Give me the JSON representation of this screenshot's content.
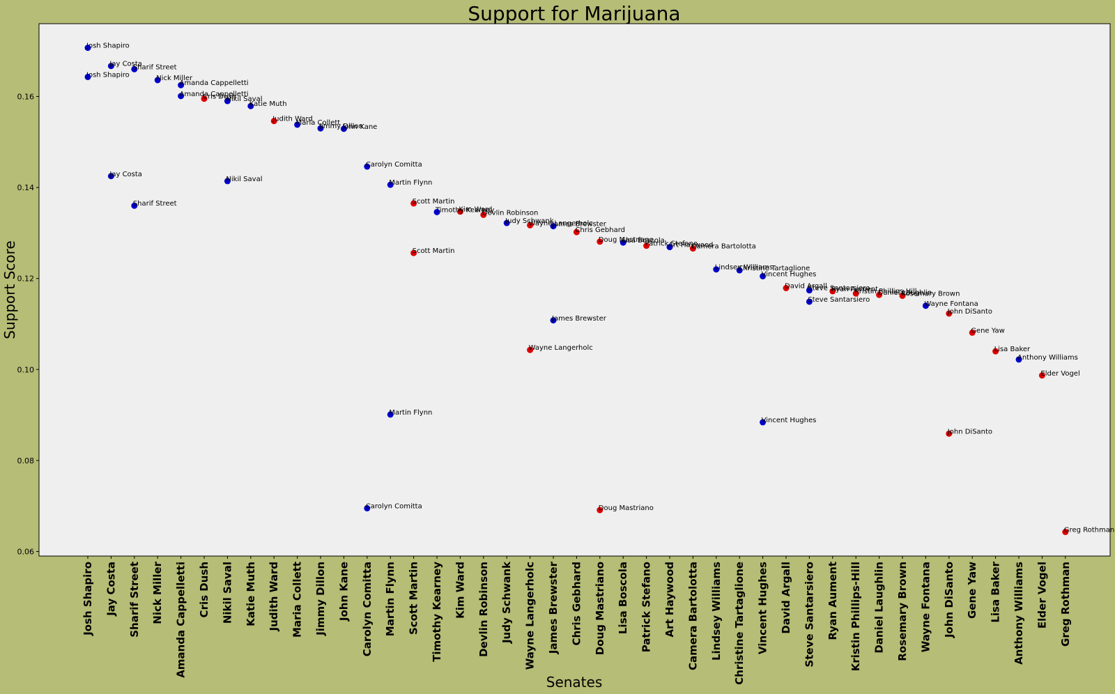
{
  "chart_data": {
    "type": "scatter",
    "title": "Support for Marijuana",
    "xlabel": "Senates",
    "ylabel": "Support Score",
    "ylim": [
      0.059,
      0.176
    ],
    "yticks": [
      0.06,
      0.08,
      0.1,
      0.12,
      0.14,
      0.16
    ],
    "ytick_labels": [
      "0.06",
      "0.08",
      "0.10",
      "0.12",
      "0.14",
      "0.16"
    ],
    "grid": false,
    "legend": "none",
    "colors": {
      "blue": "#0000cc",
      "red": "#dd0000"
    },
    "categories": [
      "Josh Shapiro",
      "Jay Costa",
      "Sharif Street",
      "Nick Miller",
      "Amanda Cappelletti",
      "Cris Dush",
      "Nikil Saval",
      "Katie Muth",
      "Judith Ward",
      "Maria Collett",
      "Jimmy Dillon",
      "John Kane",
      "Carolyn Comitta",
      "Martin Flynn",
      "Scott Martin",
      "Timothy Kearney",
      "Kim Ward",
      "Devlin Robinson",
      "Judy Schwank",
      "Wayne Langerholc",
      "James Brewster",
      "Chris Gebhard",
      "Doug Mastriano",
      "Lisa Boscola",
      "Patrick Stefano",
      "Art Haywood",
      "Camera Bartolotta",
      "Lindsey Williams",
      "Christine Tartaglione",
      "Vincent Hughes",
      "David Argall",
      "Steve Santarsiero",
      "Ryan Aument",
      "Kristin Phillips-Hill",
      "Daniel Laughlin",
      "Rosemary Brown",
      "Wayne Fontana",
      "John DiSanto",
      "Gene Yaw",
      "Lisa Baker",
      "Anthony Williams",
      "Elder Vogel",
      "Greg Rothman"
    ],
    "points": [
      {
        "x": "Josh Shapiro",
        "y": 0.1707,
        "label": "Josh Shapiro",
        "color": "blue"
      },
      {
        "x": "Josh Shapiro",
        "y": 0.1643,
        "label": "Josh Shapiro",
        "color": "blue"
      },
      {
        "x": "Jay Costa",
        "y": 0.1667,
        "label": "Jay Costa",
        "color": "blue"
      },
      {
        "x": "Jay Costa",
        "y": 0.1425,
        "label": "Jay Costa",
        "color": "blue"
      },
      {
        "x": "Sharif Street",
        "y": 0.166,
        "label": "Sharif Street",
        "color": "blue"
      },
      {
        "x": "Sharif Street",
        "y": 0.136,
        "label": "Sharif Street",
        "color": "blue"
      },
      {
        "x": "Nick Miller",
        "y": 0.1636,
        "label": "Nick Miller",
        "color": "blue"
      },
      {
        "x": "Amanda Cappelletti",
        "y": 0.1625,
        "label": "Amanda Cappelletti",
        "color": "blue"
      },
      {
        "x": "Amanda Cappelletti",
        "y": 0.1601,
        "label": "Amanda Cappelletti",
        "color": "blue"
      },
      {
        "x": "Cris Dush",
        "y": 0.1595,
        "label": "Cris Dush",
        "color": "red"
      },
      {
        "x": "Nikil Saval",
        "y": 0.159,
        "label": "Nikil Saval",
        "color": "blue"
      },
      {
        "x": "Nikil Saval",
        "y": 0.1414,
        "label": "Nikil Saval",
        "color": "blue"
      },
      {
        "x": "Katie Muth",
        "y": 0.1579,
        "label": "Katie Muth",
        "color": "blue"
      },
      {
        "x": "Judith Ward",
        "y": 0.1546,
        "label": "Judith Ward",
        "color": "red"
      },
      {
        "x": "Maria Collett",
        "y": 0.1538,
        "label": "Maria Collett",
        "color": "blue"
      },
      {
        "x": "Jimmy Dillon",
        "y": 0.153,
        "label": "Jimmy Dillon",
        "color": "blue"
      },
      {
        "x": "John Kane",
        "y": 0.1529,
        "label": "John Kane",
        "color": "blue"
      },
      {
        "x": "Carolyn Comitta",
        "y": 0.1446,
        "label": "Carolyn Comitta",
        "color": "blue"
      },
      {
        "x": "Carolyn Comitta",
        "y": 0.0695,
        "label": "Carolyn Comitta",
        "color": "blue"
      },
      {
        "x": "Martin Flynn",
        "y": 0.1406,
        "label": "Martin Flynn",
        "color": "blue"
      },
      {
        "x": "Martin Flynn",
        "y": 0.0901,
        "label": "Martin Flynn",
        "color": "blue"
      },
      {
        "x": "Scott Martin",
        "y": 0.1365,
        "label": "Scott Martin",
        "color": "red"
      },
      {
        "x": "Scott Martin",
        "y": 0.1256,
        "label": "Scott Martin",
        "color": "red"
      },
      {
        "x": "Timothy Kearney",
        "y": 0.1346,
        "label": "Timothy Kearney",
        "color": "blue"
      },
      {
        "x": "Kim Ward",
        "y": 0.1347,
        "label": "Kim Ward",
        "color": "red"
      },
      {
        "x": "Devlin Robinson",
        "y": 0.134,
        "label": "Devlin Robinson",
        "color": "red"
      },
      {
        "x": "Judy Schwank",
        "y": 0.1322,
        "label": "Judy Schwank",
        "color": "blue"
      },
      {
        "x": "Wayne Langerholc",
        "y": 0.1317,
        "label": "Wayne Langerholc",
        "color": "red"
      },
      {
        "x": "Wayne Langerholc",
        "y": 0.1043,
        "label": "Wayne Langerholc",
        "color": "red"
      },
      {
        "x": "James Brewster",
        "y": 0.1315,
        "label": "James Brewster",
        "color": "blue"
      },
      {
        "x": "James Brewster",
        "y": 0.1108,
        "label": "James Brewster",
        "color": "blue"
      },
      {
        "x": "Chris Gebhard",
        "y": 0.1302,
        "label": "Chris Gebhard",
        "color": "red"
      },
      {
        "x": "Doug Mastriano",
        "y": 0.1281,
        "label": "Doug Mastriano",
        "color": "red"
      },
      {
        "x": "Doug Mastriano",
        "y": 0.0691,
        "label": "Doug Mastriano",
        "color": "red"
      },
      {
        "x": "Lisa Boscola",
        "y": 0.1279,
        "label": "Lisa Boscola",
        "color": "blue"
      },
      {
        "x": "Patrick Stefano",
        "y": 0.1272,
        "label": "Patrick Stefano",
        "color": "red"
      },
      {
        "x": "Art Haywood",
        "y": 0.1269,
        "label": "Art Haywood",
        "color": "blue"
      },
      {
        "x": "Camera Bartolotta",
        "y": 0.1266,
        "label": "Camera Bartolotta",
        "color": "red"
      },
      {
        "x": "Lindsey Williams",
        "y": 0.122,
        "label": "Lindsey Williams",
        "color": "blue"
      },
      {
        "x": "Christine Tartaglione",
        "y": 0.1218,
        "label": "Christine Tartaglione",
        "color": "blue"
      },
      {
        "x": "Vincent Hughes",
        "y": 0.1205,
        "label": "Vincent Hughes",
        "color": "blue"
      },
      {
        "x": "Vincent Hughes",
        "y": 0.0884,
        "label": "Vincent Hughes",
        "color": "blue"
      },
      {
        "x": "David Argall",
        "y": 0.1179,
        "label": "David Argall",
        "color": "red"
      },
      {
        "x": "Steve Santarsiero",
        "y": 0.1174,
        "label": "Steve Santarsiero",
        "color": "blue"
      },
      {
        "x": "Steve Santarsiero",
        "y": 0.1149,
        "label": "Steve Santarsiero",
        "color": "blue"
      },
      {
        "x": "Ryan Aument",
        "y": 0.1172,
        "label": "Ryan Aument",
        "color": "red"
      },
      {
        "x": "Kristin Phillips-Hill",
        "y": 0.1167,
        "label": "Kristin Phillips-Hill",
        "color": "red"
      },
      {
        "x": "Daniel Laughlin",
        "y": 0.1164,
        "label": "Daniel Laughlin",
        "color": "red"
      },
      {
        "x": "Rosemary Brown",
        "y": 0.1162,
        "label": "Rosemary Brown",
        "color": "red"
      },
      {
        "x": "Wayne Fontana",
        "y": 0.114,
        "label": "Wayne Fontana",
        "color": "blue"
      },
      {
        "x": "John DiSanto",
        "y": 0.1123,
        "label": "John DiSanto",
        "color": "red"
      },
      {
        "x": "John DiSanto",
        "y": 0.0859,
        "label": "John DiSanto",
        "color": "red"
      },
      {
        "x": "Gene Yaw",
        "y": 0.1081,
        "label": "Gene Yaw",
        "color": "red"
      },
      {
        "x": "Lisa Baker",
        "y": 0.104,
        "label": "Lisa Baker",
        "color": "red"
      },
      {
        "x": "Anthony Williams",
        "y": 0.1022,
        "label": "Anthony Williams",
        "color": "blue"
      },
      {
        "x": "Elder Vogel",
        "y": 0.0987,
        "label": "Elder Vogel",
        "color": "red"
      },
      {
        "x": "Greg Rothman",
        "y": 0.0643,
        "label": "Greg Rothman",
        "color": "red"
      }
    ]
  }
}
